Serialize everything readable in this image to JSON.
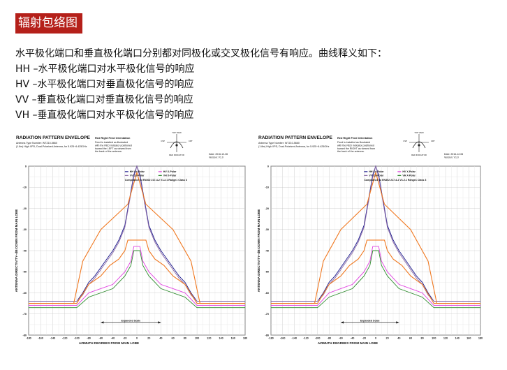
{
  "header": {
    "title": "辐射包络图"
  },
  "description": {
    "intro": "水平极化端口和垂直极化端口分别都对同极化或交叉极化信号有响应。曲线释义如下：",
    "lines": [
      "HH –水平极化端口对水平极化信号的响应",
      "HV –水平极化端口对垂直极化信号的响应",
      "VV –垂直极化端口对垂直极化信号的响应",
      "VH –垂直极化端口对水平极化信号的响应"
    ]
  },
  "chart_data": [
    {
      "type": "line",
      "title": "RADIATION PATTERN ENVELOPE",
      "subtitle_1": "Antenna Type Number: WTZ10-5660",
      "subtitle_2": "(1.8m) High XPD, Dual-Polarized Antenna, for 5.925~6.425GHz",
      "feed_note_title": "Red Right Feed Orientation",
      "feed_note_lines": [
        "Feed is installed as illustrated",
        "with the RED indicator positioned",
        "toward the LEFT as viewed from",
        "the back of the antenna."
      ],
      "feed_diagram_labels": {
        "top": "TOP VIEW",
        "left": "CSP",
        "right": "CRT",
        "bottom": "RED INDICATOR"
      },
      "date": "Date: 2016-12-06",
      "version": "Version: V1.0",
      "xlabel": "AZIMUTH DEGREES FROM MAIN LOBE",
      "ylabel": "ANTENNA DIRECTIVITY--dB DOWN FROM MAIN LOBE",
      "xlim": [
        -180,
        180
      ],
      "ylim": [
        -80,
        0
      ],
      "x_ticks": [
        -180,
        -160,
        -140,
        -120,
        -100,
        -80,
        -60,
        -40,
        -20,
        0,
        20,
        40,
        60,
        80,
        100,
        120,
        140,
        160,
        180
      ],
      "y_ticks": [
        0,
        -10,
        -20,
        -30,
        -40,
        -50,
        -60,
        -70,
        -80
      ],
      "grid": true,
      "legend": [
        {
          "label": "HH Co-Polar",
          "color": "#1a1a8c"
        },
        {
          "label": "HV X-Polar",
          "color": "#e040e0"
        },
        {
          "label": "VV Co-Polar",
          "color": "#8c6aa8"
        },
        {
          "label": "VH X-Polar",
          "color": "#2e8b2e"
        }
      ],
      "compliance_note": "Compliance to EN302 217-4-2 V1.2.1 Range1 Class 3",
      "annotation": "Expanded Scale",
      "series": [
        {
          "name": "HH Co-Polar",
          "color": "#1a1a8c",
          "x": [
            -180,
            -100,
            -90,
            -80,
            -70,
            -60,
            -50,
            -40,
            -30,
            -20,
            -15,
            -10,
            -5,
            0,
            5,
            10,
            15,
            20,
            30,
            40,
            50,
            60,
            70,
            80,
            90,
            100,
            180
          ],
          "y": [
            -64,
            -64,
            -60,
            -55,
            -52,
            -48,
            -44,
            -40,
            -35,
            -28,
            -20,
            -12,
            -4,
            0,
            -4,
            -12,
            -20,
            -28,
            -35,
            -40,
            -44,
            -48,
            -52,
            -55,
            -60,
            -64,
            -64
          ]
        },
        {
          "name": "VV Co-Polar",
          "color": "#8c6aa8",
          "x": [
            -180,
            -100,
            -90,
            -80,
            -70,
            -60,
            -50,
            -40,
            -30,
            -20,
            -15,
            -10,
            -5,
            0,
            5,
            10,
            15,
            20,
            30,
            40,
            50,
            60,
            70,
            80,
            90,
            100,
            180
          ],
          "y": [
            -64,
            -64,
            -61,
            -56,
            -53,
            -49,
            -45,
            -41,
            -36,
            -29,
            -21,
            -13,
            -5,
            0,
            -5,
            -13,
            -21,
            -29,
            -36,
            -41,
            -45,
            -49,
            -53,
            -56,
            -61,
            -64,
            -64
          ]
        },
        {
          "name": "HV X-Polar",
          "color": "#e040e0",
          "x": [
            -180,
            -100,
            -80,
            -60,
            -40,
            -20,
            -10,
            -5,
            0,
            5,
            10,
            20,
            40,
            60,
            80,
            100,
            180
          ],
          "y": [
            -66,
            -66,
            -60,
            -58,
            -56,
            -50,
            -45,
            -38,
            -38,
            -38,
            -45,
            -50,
            -56,
            -58,
            -60,
            -66,
            -66
          ]
        },
        {
          "name": "VH X-Polar",
          "color": "#2e8b2e",
          "x": [
            -180,
            -100,
            -80,
            -60,
            -40,
            -20,
            -10,
            -5,
            0,
            5,
            10,
            20,
            40,
            60,
            80,
            100,
            180
          ],
          "y": [
            -67,
            -67,
            -62,
            -60,
            -58,
            -52,
            -47,
            -40,
            -40,
            -40,
            -47,
            -52,
            -58,
            -60,
            -62,
            -67,
            -67
          ]
        },
        {
          "name": "",
          "color": "#f07820",
          "x": [
            -180,
            -105,
            -90,
            -60,
            -30,
            -15,
            -5,
            0,
            5,
            15,
            30,
            60,
            90,
            105,
            180
          ],
          "y": [
            -65,
            -65,
            -45,
            -30,
            -22,
            -18,
            -8,
            -3,
            -8,
            -18,
            -22,
            -30,
            -45,
            -65,
            -65
          ]
        },
        {
          "name": "",
          "color": "#f07820",
          "x": [
            -180,
            -100,
            -80,
            -60,
            -45,
            -30,
            -20,
            -15,
            -5,
            0,
            5,
            15,
            20,
            30,
            45,
            60,
            80,
            100,
            180
          ],
          "y": [
            -65,
            -65,
            -56,
            -52,
            -47,
            -44,
            -40,
            -35,
            -35,
            -35,
            -35,
            -35,
            -40,
            -44,
            -47,
            -52,
            -56,
            -65,
            -65
          ]
        }
      ]
    },
    {
      "type": "line",
      "title": "RADIATION PATTERN ENVELOPE",
      "subtitle_1": "Antenna Type Number: WTZ10-5660",
      "subtitle_2": "(1.8m) High XPD, Dual-Polarized Antenna, for 5.925~6.425GHz",
      "feed_note_title": "Red Right Feed Orientation",
      "feed_note_lines": [
        "Feed is installed as illustrated",
        "with the RED indicator positioned",
        "toward the RIGHT as viewed from",
        "the back of the antenna."
      ],
      "feed_diagram_labels": {
        "top": "TOP VIEW",
        "left": "CSP",
        "right": "CRT",
        "bottom": "RED INDICATOR"
      },
      "date": "Date: 2016-12-06",
      "version": "Version: V1.0",
      "xlabel": "AZIMUTH DEGREES FROM MAIN LOBE",
      "ylabel": "ANTENNA DIRECTIVITY--dB DOWN FROM MAIN LOBE",
      "xlim": [
        -180,
        180
      ],
      "ylim": [
        -80,
        0
      ],
      "x_ticks": [
        -180,
        -160,
        -140,
        -120,
        -100,
        -80,
        -60,
        -40,
        -20,
        0,
        20,
        40,
        60,
        80,
        100,
        120,
        140,
        160,
        180
      ],
      "y_ticks": [
        0,
        -10,
        -20,
        -30,
        -40,
        -50,
        -60,
        -70,
        -80
      ],
      "grid": true,
      "legend": [
        {
          "label": "HH Co-Polar",
          "color": "#1a1a8c"
        },
        {
          "label": "HV X-Polar",
          "color": "#e040e0"
        },
        {
          "label": "VV Co-Polar",
          "color": "#8c6aa8"
        },
        {
          "label": "VH X-Polar",
          "color": "#2e8b2e"
        }
      ],
      "compliance_note": "Compliance to EN302 217-4-2 V1.2.1 Range1 Class 3",
      "annotation": "Expanded Scale",
      "series": [
        {
          "name": "HH Co-Polar",
          "color": "#1a1a8c",
          "x": [
            -180,
            -100,
            -90,
            -80,
            -70,
            -60,
            -50,
            -40,
            -30,
            -20,
            -15,
            -10,
            -5,
            0,
            5,
            10,
            15,
            20,
            30,
            40,
            50,
            60,
            70,
            80,
            90,
            100,
            180
          ],
          "y": [
            -64,
            -64,
            -60,
            -55,
            -52,
            -48,
            -44,
            -40,
            -35,
            -28,
            -20,
            -12,
            -4,
            0,
            -4,
            -12,
            -20,
            -28,
            -35,
            -40,
            -44,
            -48,
            -52,
            -55,
            -60,
            -64,
            -64
          ]
        },
        {
          "name": "VV Co-Polar",
          "color": "#8c6aa8",
          "x": [
            -180,
            -100,
            -90,
            -80,
            -70,
            -60,
            -50,
            -40,
            -30,
            -20,
            -15,
            -10,
            -5,
            0,
            5,
            10,
            15,
            20,
            30,
            40,
            50,
            60,
            70,
            80,
            90,
            100,
            180
          ],
          "y": [
            -64,
            -64,
            -61,
            -56,
            -53,
            -49,
            -45,
            -41,
            -36,
            -29,
            -21,
            -13,
            -5,
            0,
            -5,
            -13,
            -21,
            -29,
            -36,
            -41,
            -45,
            -49,
            -53,
            -56,
            -61,
            -64,
            -64
          ]
        },
        {
          "name": "HV X-Polar",
          "color": "#e040e0",
          "x": [
            -180,
            -100,
            -80,
            -60,
            -40,
            -20,
            -10,
            -5,
            0,
            5,
            10,
            20,
            40,
            60,
            80,
            100,
            180
          ],
          "y": [
            -66,
            -66,
            -60,
            -58,
            -56,
            -50,
            -45,
            -38,
            -38,
            -38,
            -45,
            -50,
            -56,
            -58,
            -60,
            -66,
            -66
          ]
        },
        {
          "name": "VH X-Polar",
          "color": "#2e8b2e",
          "x": [
            -180,
            -100,
            -80,
            -60,
            -40,
            -20,
            -10,
            -5,
            0,
            5,
            10,
            20,
            40,
            60,
            80,
            100,
            180
          ],
          "y": [
            -67,
            -67,
            -62,
            -60,
            -58,
            -52,
            -47,
            -40,
            -40,
            -40,
            -47,
            -52,
            -58,
            -60,
            -62,
            -67,
            -67
          ]
        },
        {
          "name": "",
          "color": "#f07820",
          "x": [
            -180,
            -105,
            -90,
            -60,
            -30,
            -15,
            -5,
            0,
            5,
            15,
            30,
            60,
            90,
            105,
            180
          ],
          "y": [
            -65,
            -65,
            -45,
            -30,
            -22,
            -18,
            -8,
            -3,
            -8,
            -18,
            -22,
            -30,
            -45,
            -65,
            -65
          ]
        },
        {
          "name": "",
          "color": "#f07820",
          "x": [
            -180,
            -100,
            -80,
            -60,
            -45,
            -30,
            -20,
            -15,
            -5,
            0,
            5,
            15,
            20,
            30,
            45,
            60,
            80,
            100,
            180
          ],
          "y": [
            -65,
            -65,
            -56,
            -52,
            -47,
            -44,
            -40,
            -35,
            -35,
            -35,
            -35,
            -35,
            -40,
            -44,
            -47,
            -52,
            -56,
            -65,
            -65
          ]
        }
      ]
    }
  ]
}
